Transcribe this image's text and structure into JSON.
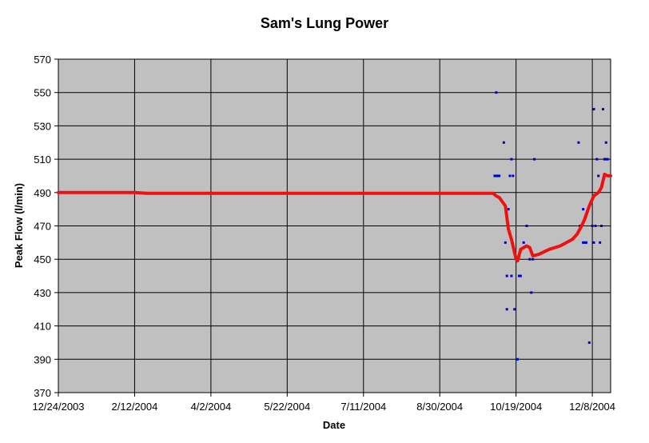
{
  "chart_data": {
    "type": "scatter",
    "title": "Sam's Lung Power",
    "xlabel": "Date",
    "ylabel": "Peak Flow (l/min)",
    "x_range": [
      "2003-12-24",
      "2004-12-20"
    ],
    "ylim": [
      370,
      570
    ],
    "grid": true,
    "plot_background": "#c0c0c0",
    "colors": {
      "points": "#0000cc",
      "trend": "#ee1111"
    },
    "x_ticks": [
      {
        "date": "2003-12-24",
        "label": "12/24/2003"
      },
      {
        "date": "2004-02-12",
        "label": "2/12/2004"
      },
      {
        "date": "2004-04-02",
        "label": "4/2/2004"
      },
      {
        "date": "2004-05-22",
        "label": "5/22/2004"
      },
      {
        "date": "2004-07-11",
        "label": "7/11/2004"
      },
      {
        "date": "2004-08-30",
        "label": "8/30/2004"
      },
      {
        "date": "2004-10-19",
        "label": "10/19/2004"
      },
      {
        "date": "2004-12-08",
        "label": "12/8/2004"
      }
    ],
    "y_ticks": [
      370,
      390,
      410,
      430,
      450,
      470,
      490,
      510,
      530,
      550,
      570
    ],
    "series": [
      {
        "kind": "points",
        "points": [
          [
            "2004-10-06",
            550
          ],
          [
            "2004-10-05",
            500
          ],
          [
            "2004-10-06",
            500
          ],
          [
            "2004-10-07",
            500
          ],
          [
            "2004-10-08",
            500
          ],
          [
            "2004-10-11",
            520
          ],
          [
            "2004-10-12",
            460
          ],
          [
            "2004-10-13",
            420
          ],
          [
            "2004-10-13",
            440
          ],
          [
            "2004-10-14",
            480
          ],
          [
            "2004-10-15",
            500
          ],
          [
            "2004-10-16",
            440
          ],
          [
            "2004-10-16",
            510
          ],
          [
            "2004-10-17",
            500
          ],
          [
            "2004-10-18",
            420
          ],
          [
            "2004-10-20",
            390
          ],
          [
            "2004-10-21",
            440
          ],
          [
            "2004-10-22",
            440
          ],
          [
            "2004-10-24",
            460
          ],
          [
            "2004-10-26",
            470
          ],
          [
            "2004-10-28",
            450
          ],
          [
            "2004-10-29",
            430
          ],
          [
            "2004-10-30",
            450
          ],
          [
            "2004-10-31",
            510
          ],
          [
            "2004-11-29",
            520
          ],
          [
            "2004-11-30",
            470
          ],
          [
            "2004-12-02",
            460
          ],
          [
            "2004-12-02",
            480
          ],
          [
            "2004-12-03",
            460
          ],
          [
            "2004-12-04",
            460
          ],
          [
            "2004-12-06",
            400
          ],
          [
            "2004-12-08",
            470
          ],
          [
            "2004-12-09",
            460
          ],
          [
            "2004-12-09",
            540
          ],
          [
            "2004-12-10",
            470
          ],
          [
            "2004-12-11",
            510
          ],
          [
            "2004-12-12",
            500
          ],
          [
            "2004-12-13",
            460
          ],
          [
            "2004-12-14",
            470
          ],
          [
            "2004-12-15",
            540
          ],
          [
            "2004-12-16",
            510
          ],
          [
            "2004-12-17",
            510
          ],
          [
            "2004-12-17",
            520
          ],
          [
            "2004-12-18",
            510
          ]
        ]
      },
      {
        "kind": "trendline",
        "points": [
          [
            "2003-12-24",
            490
          ],
          [
            "2004-02-12",
            490
          ],
          [
            "2004-02-20",
            489.5
          ],
          [
            "2004-10-04",
            489.5
          ],
          [
            "2004-10-06",
            488
          ],
          [
            "2004-10-08",
            487
          ],
          [
            "2004-10-12",
            482
          ],
          [
            "2004-10-14",
            468
          ],
          [
            "2004-10-16",
            462
          ],
          [
            "2004-10-19",
            450
          ],
          [
            "2004-10-20",
            449
          ],
          [
            "2004-10-22",
            456
          ],
          [
            "2004-10-24",
            457
          ],
          [
            "2004-10-26",
            458
          ],
          [
            "2004-10-28",
            457
          ],
          [
            "2004-10-30",
            452
          ],
          [
            "2004-11-03",
            453
          ],
          [
            "2004-11-10",
            456
          ],
          [
            "2004-11-17",
            458
          ],
          [
            "2004-11-25",
            462
          ],
          [
            "2004-11-28",
            465
          ],
          [
            "2004-12-01",
            470
          ],
          [
            "2004-12-03",
            474
          ],
          [
            "2004-12-06",
            482
          ],
          [
            "2004-12-09",
            488
          ],
          [
            "2004-12-12",
            490
          ],
          [
            "2004-12-14",
            493
          ],
          [
            "2004-12-16",
            501
          ],
          [
            "2004-12-18",
            500
          ],
          [
            "2004-12-20",
            500
          ]
        ]
      }
    ]
  }
}
